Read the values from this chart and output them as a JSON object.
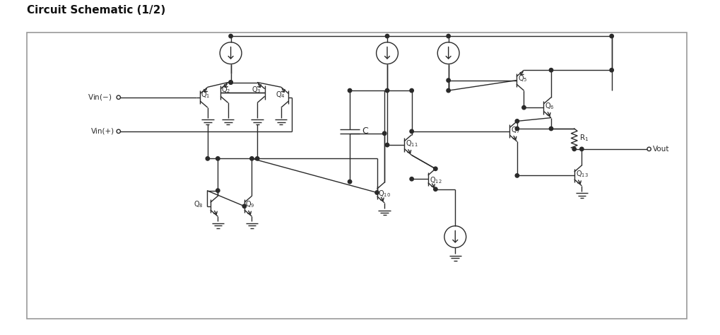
{
  "title": "Circuit Schematic (1/2)",
  "title_fontsize": 11,
  "bg_color": "#ffffff",
  "line_color": "#2a2a2a",
  "text_color": "#2a2a2a",
  "border_color": "#999999",
  "figsize": [
    10.19,
    4.74
  ],
  "dpi": 100,
  "xlim": [
    0,
    102
  ],
  "ylim": [
    0,
    48
  ]
}
